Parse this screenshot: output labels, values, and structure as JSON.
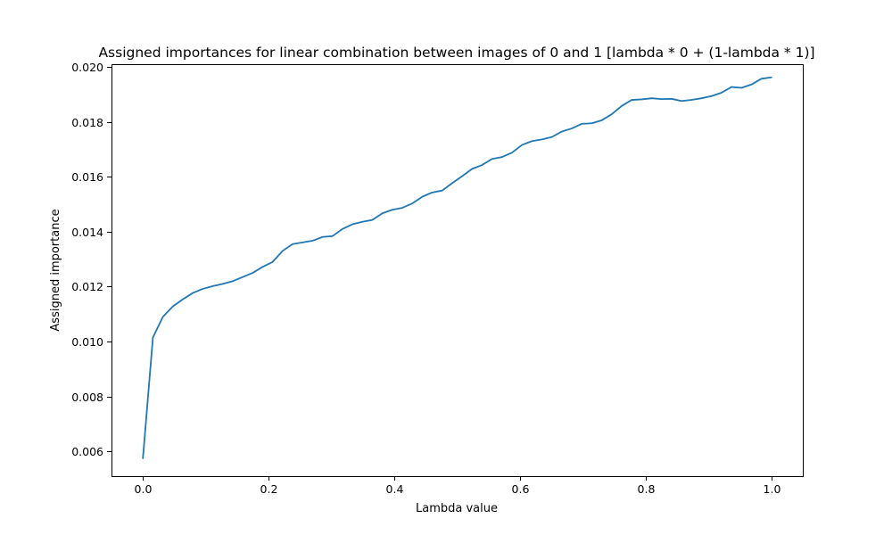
{
  "chart_data": {
    "type": "line",
    "title": "Assigned importances for linear combination between images of 0 and 1 [lambda * 0 + (1-lambda * 1)]",
    "xlabel": "Lambda value",
    "ylabel": "Assigned importance",
    "xlim": [
      -0.05,
      1.05
    ],
    "ylim": [
      0.0051,
      0.0201
    ],
    "xticks": [
      0.0,
      0.2,
      0.4,
      0.6,
      0.8,
      1.0
    ],
    "xtick_labels": [
      "0.0",
      "0.2",
      "0.4",
      "0.6",
      "0.8",
      "1.0"
    ],
    "yticks": [
      0.006,
      0.008,
      0.01,
      0.012,
      0.014,
      0.016,
      0.018,
      0.02
    ],
    "ytick_labels": [
      "0.006",
      "0.008",
      "0.010",
      "0.012",
      "0.014",
      "0.016",
      "0.018",
      "0.020"
    ],
    "grid": false,
    "legend": false,
    "series": [
      {
        "color": "#1f77b4",
        "x": [
          0.0,
          0.0159,
          0.0317,
          0.0476,
          0.0635,
          0.0794,
          0.0952,
          0.1111,
          0.127,
          0.1429,
          0.1587,
          0.1746,
          0.1905,
          0.2063,
          0.2222,
          0.2381,
          0.254,
          0.2698,
          0.2857,
          0.3016,
          0.3175,
          0.3333,
          0.3492,
          0.3651,
          0.381,
          0.3968,
          0.4127,
          0.4286,
          0.4444,
          0.4603,
          0.4762,
          0.4921,
          0.5079,
          0.5238,
          0.5397,
          0.5556,
          0.5714,
          0.5873,
          0.6032,
          0.619,
          0.6349,
          0.6508,
          0.6667,
          0.6825,
          0.6984,
          0.7143,
          0.7302,
          0.746,
          0.7619,
          0.7778,
          0.7937,
          0.8095,
          0.8254,
          0.8413,
          0.8571,
          0.873,
          0.8889,
          0.9048,
          0.9206,
          0.9365,
          0.9524,
          0.9683,
          0.9841,
          1.0
        ],
        "y": [
          0.00575,
          0.01015,
          0.0109,
          0.01128,
          0.01154,
          0.01177,
          0.01192,
          0.01202,
          0.0121,
          0.0122,
          0.01235,
          0.0125,
          0.01272,
          0.0129,
          0.0133,
          0.01355,
          0.01361,
          0.01367,
          0.01381,
          0.01384,
          0.0141,
          0.01427,
          0.01436,
          0.01443,
          0.01467,
          0.0148,
          0.01487,
          0.01503,
          0.01527,
          0.01543,
          0.0155,
          0.01577,
          0.01602,
          0.01629,
          0.01643,
          0.01665,
          0.01672,
          0.01688,
          0.01716,
          0.0173,
          0.01736,
          0.01745,
          0.01765,
          0.01776,
          0.01793,
          0.01795,
          0.01806,
          0.01828,
          0.01858,
          0.0188,
          0.01882,
          0.01886,
          0.01883,
          0.01884,
          0.01876,
          0.0188,
          0.01886,
          0.01894,
          0.01906,
          0.01927,
          0.01924,
          0.01936,
          0.01957,
          0.01962
        ]
      }
    ]
  }
}
